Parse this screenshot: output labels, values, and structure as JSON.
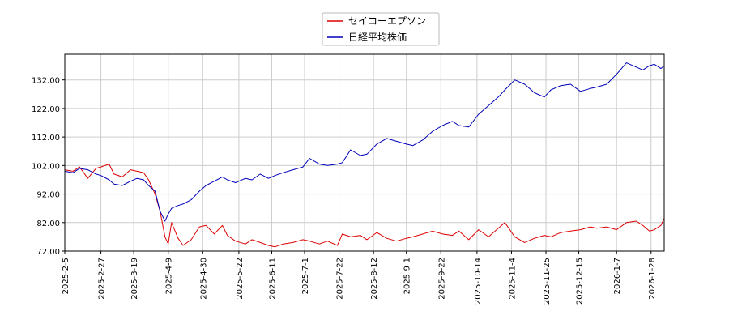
{
  "chart_data": {
    "type": "line",
    "title": "",
    "xlabel": "",
    "ylabel": "",
    "ylim": [
      72.0,
      141.0
    ],
    "grid": true,
    "legend_position": "top-center",
    "x_tick_labels": [
      "2025-2-5",
      "2025-2-27",
      "2025-3-19",
      "2025-4-9",
      "2025-4-30",
      "2025-5-22",
      "2025-6-11",
      "2025-7-1",
      "2025-7-22",
      "2025-8-12",
      "2025-9-1",
      "2025-9-22",
      "2025-10-14",
      "2025-11-4",
      "2025-11-25",
      "2025-12-15",
      "2026-1-7",
      "2026-1-28"
    ],
    "y_tick_labels": [
      "72.00",
      "82.00",
      "92.00",
      "102.00",
      "112.00",
      "122.00",
      "132.00"
    ],
    "y_ticks": [
      72,
      82,
      92,
      102,
      112,
      122,
      132
    ],
    "series": [
      {
        "name": "セイコーエプソン",
        "color": "#dd0000",
        "x": [
          "2025-02-05",
          "2025-02-10",
          "2025-02-14",
          "2025-02-19",
          "2025-02-24",
          "2025-02-27",
          "2025-03-04",
          "2025-03-07",
          "2025-03-12",
          "2025-03-17",
          "2025-03-21",
          "2025-03-25",
          "2025-03-28",
          "2025-04-01",
          "2025-04-04",
          "2025-04-07",
          "2025-04-09",
          "2025-04-11",
          "2025-04-15",
          "2025-04-18",
          "2025-04-23",
          "2025-04-28",
          "2025-05-02",
          "2025-05-07",
          "2025-05-12",
          "2025-05-15",
          "2025-05-20",
          "2025-05-26",
          "2025-05-30",
          "2025-06-04",
          "2025-06-09",
          "2025-06-13",
          "2025-06-18",
          "2025-06-24",
          "2025-06-30",
          "2025-07-04",
          "2025-07-10",
          "2025-07-15",
          "2025-07-21",
          "2025-07-24",
          "2025-07-29",
          "2025-08-04",
          "2025-08-08",
          "2025-08-14",
          "2025-08-20",
          "2025-08-26",
          "2025-09-01",
          "2025-09-05",
          "2025-09-11",
          "2025-09-17",
          "2025-09-23",
          "2025-09-29",
          "2025-10-03",
          "2025-10-09",
          "2025-10-15",
          "2025-10-21",
          "2025-10-27",
          "2025-10-31",
          "2025-11-06",
          "2025-11-12",
          "2025-11-18",
          "2025-11-24",
          "2025-11-28",
          "2025-12-04",
          "2025-12-10",
          "2025-12-16",
          "2025-12-22",
          "2025-12-26",
          "2026-01-01",
          "2026-01-07",
          "2026-01-13",
          "2026-01-19",
          "2026-01-23",
          "2026-01-27",
          "2026-01-30",
          "2026-02-03",
          "2026-02-05"
        ],
        "values": [
          100.5,
          100.0,
          101.5,
          97.5,
          101.0,
          101.5,
          102.5,
          99.0,
          98.0,
          100.5,
          100.0,
          99.5,
          97.0,
          92.0,
          86.0,
          77.0,
          74.5,
          82.0,
          76.5,
          74.0,
          76.0,
          80.5,
          81.0,
          78.0,
          81.0,
          77.5,
          75.5,
          74.5,
          76.0,
          75.0,
          74.0,
          73.5,
          74.5,
          75.0,
          76.0,
          75.5,
          74.5,
          75.5,
          74.0,
          78.0,
          77.0,
          77.5,
          76.0,
          78.5,
          76.5,
          75.5,
          76.5,
          77.0,
          78.0,
          79.0,
          78.0,
          77.5,
          79.0,
          76.0,
          79.5,
          77.0,
          80.0,
          82.0,
          77.0,
          75.0,
          76.5,
          77.5,
          77.0,
          78.5,
          79.0,
          79.5,
          80.5,
          80.0,
          80.5,
          79.5,
          82.0,
          82.5,
          81.0,
          79.0,
          79.5,
          81.0,
          83.5
        ]
      },
      {
        "name": "日経平均株価",
        "color": "#0000bb",
        "x": [
          "2025-02-05",
          "2025-02-10",
          "2025-02-14",
          "2025-02-19",
          "2025-02-24",
          "2025-02-27",
          "2025-03-04",
          "2025-03-07",
          "2025-03-12",
          "2025-03-17",
          "2025-03-21",
          "2025-03-25",
          "2025-03-28",
          "2025-04-01",
          "2025-04-04",
          "2025-04-07",
          "2025-04-09",
          "2025-04-11",
          "2025-04-15",
          "2025-04-18",
          "2025-04-23",
          "2025-04-28",
          "2025-05-02",
          "2025-05-07",
          "2025-05-12",
          "2025-05-15",
          "2025-05-20",
          "2025-05-26",
          "2025-05-30",
          "2025-06-04",
          "2025-06-09",
          "2025-06-13",
          "2025-06-18",
          "2025-06-24",
          "2025-06-30",
          "2025-07-04",
          "2025-07-10",
          "2025-07-15",
          "2025-07-21",
          "2025-07-24",
          "2025-07-29",
          "2025-08-04",
          "2025-08-08",
          "2025-08-14",
          "2025-08-20",
          "2025-08-26",
          "2025-09-01",
          "2025-09-05",
          "2025-09-11",
          "2025-09-17",
          "2025-09-23",
          "2025-09-29",
          "2025-10-03",
          "2025-10-09",
          "2025-10-15",
          "2025-10-21",
          "2025-10-27",
          "2025-10-31",
          "2025-11-06",
          "2025-11-12",
          "2025-11-18",
          "2025-11-24",
          "2025-11-28",
          "2025-12-04",
          "2025-12-10",
          "2025-12-16",
          "2025-12-22",
          "2025-12-26",
          "2026-01-01",
          "2026-01-07",
          "2026-01-13",
          "2026-01-19",
          "2026-01-23",
          "2026-01-27",
          "2026-01-30",
          "2026-02-03",
          "2026-02-05"
        ],
        "values": [
          100.0,
          99.5,
          101.0,
          100.5,
          99.0,
          98.5,
          97.0,
          95.5,
          95.0,
          96.5,
          97.5,
          97.0,
          95.0,
          93.0,
          86.0,
          82.5,
          85.0,
          87.0,
          88.0,
          88.5,
          90.0,
          93.0,
          95.0,
          96.5,
          98.0,
          97.0,
          96.0,
          97.5,
          97.0,
          99.0,
          97.5,
          98.5,
          99.5,
          100.5,
          101.5,
          104.5,
          102.5,
          102.0,
          102.5,
          103.0,
          107.5,
          105.5,
          106.0,
          109.5,
          111.5,
          110.5,
          109.5,
          109.0,
          111.0,
          114.0,
          116.0,
          117.5,
          116.0,
          115.5,
          120.0,
          123.0,
          126.0,
          128.5,
          132.0,
          130.5,
          127.5,
          126.0,
          128.5,
          130.0,
          130.5,
          128.0,
          129.0,
          129.5,
          130.5,
          134.0,
          138.0,
          136.5,
          135.5,
          137.0,
          137.5,
          136.0,
          137.0
        ]
      }
    ]
  }
}
